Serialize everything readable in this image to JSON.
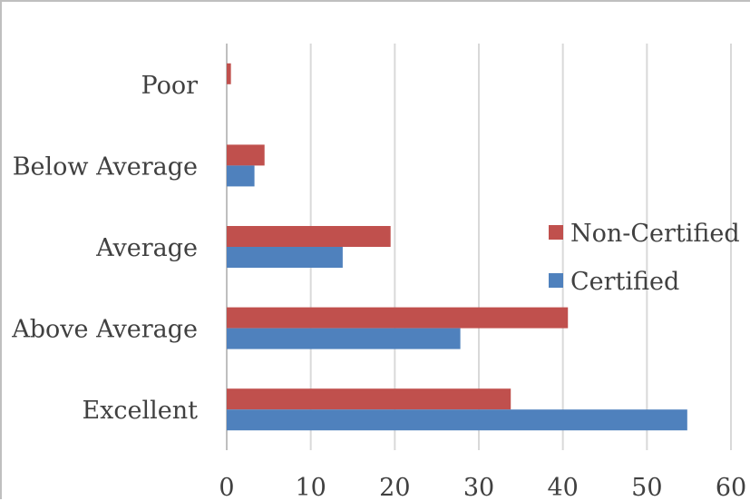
{
  "chart_data": {
    "type": "bar",
    "orientation": "horizontal",
    "title": "",
    "xlabel": "",
    "ylabel": "",
    "categories": [
      "Poor",
      "Below Average",
      "Average",
      "Above Average",
      "Excellent"
    ],
    "series": [
      {
        "name": "Non-Certified",
        "color": "#c0504d",
        "values": [
          0.5,
          4.5,
          19.5,
          40.6,
          33.8
        ]
      },
      {
        "name": "Certified",
        "color": "#4f81bd",
        "values": [
          0,
          3.3,
          13.8,
          27.8,
          54.8
        ]
      }
    ],
    "xlim": [
      0,
      60
    ],
    "xticks": [
      "0",
      "10",
      "20",
      "30",
      "40",
      "50",
      "60"
    ],
    "grid": "vertical",
    "legend": {
      "position": "right",
      "entries": [
        "Non-Certified",
        "Certified"
      ]
    }
  }
}
